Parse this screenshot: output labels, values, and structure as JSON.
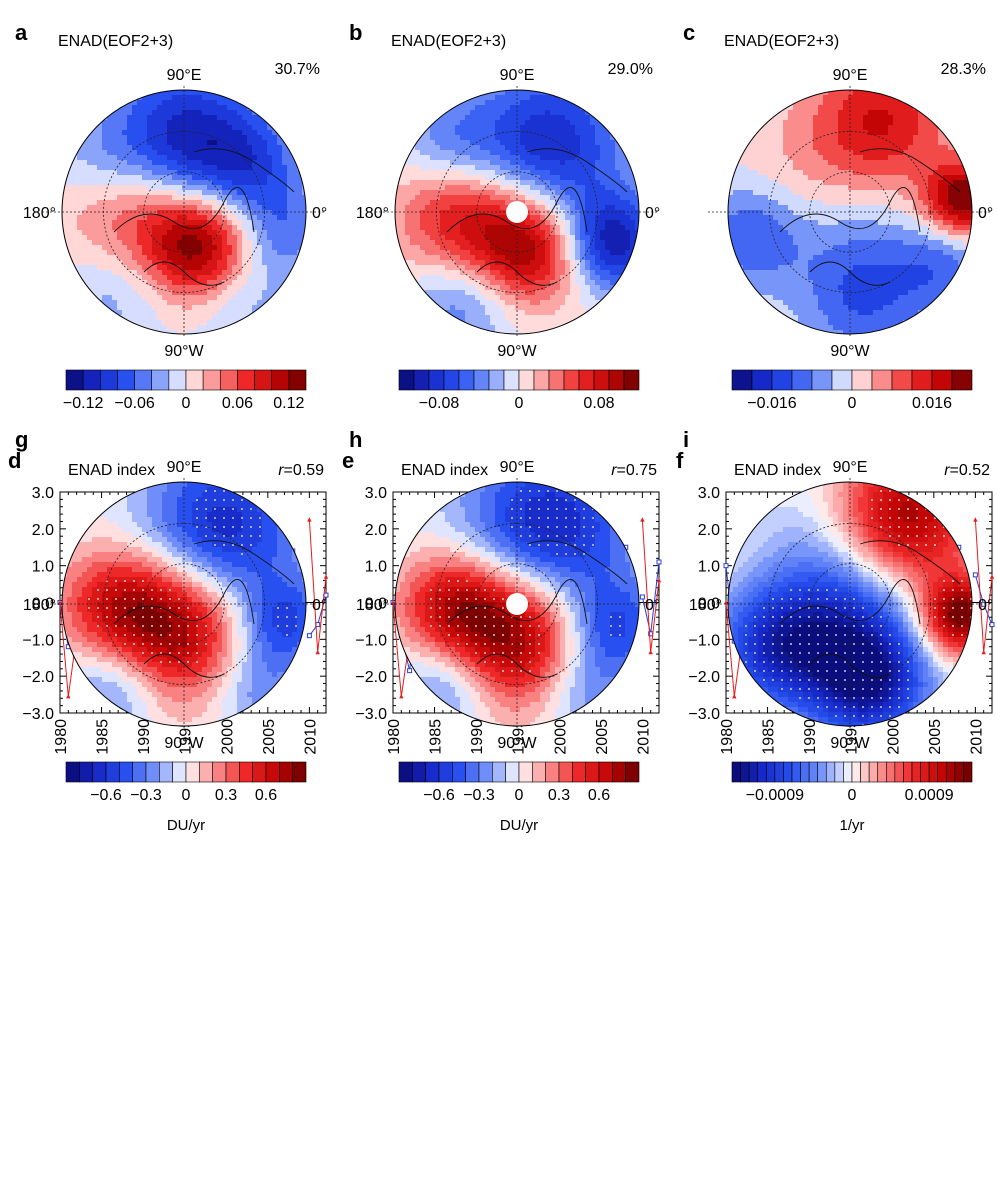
{
  "chart_data": [
    {
      "type": "polar_map",
      "panel": "a",
      "title": "ENAD(EOF2+3)",
      "variance": "30.7%",
      "lon_labels": {
        "top": "90°E",
        "bottom": "90°W",
        "left": "180°",
        "right": "0°"
      },
      "pattern": [
        {
          "x": 0.0,
          "y": -0.58,
          "v": -0.12,
          "r": 0.42
        },
        {
          "x": 0.55,
          "y": -0.38,
          "v": -0.06,
          "r": 0.3
        },
        {
          "x": -0.38,
          "y": 0.02,
          "v": 0.07,
          "r": 0.42
        },
        {
          "x": 0.12,
          "y": 0.28,
          "v": 0.12,
          "r": 0.3
        },
        {
          "x": 0.82,
          "y": 0.15,
          "v": -0.05,
          "r": 0.26
        },
        {
          "x": -0.7,
          "y": -0.45,
          "v": -0.03,
          "r": 0.3
        },
        {
          "x": -0.55,
          "y": 0.62,
          "v": -0.04,
          "r": 0.32
        },
        {
          "x": 0.5,
          "y": 0.72,
          "v": -0.03,
          "r": 0.3
        }
      ],
      "vmax": 0.14,
      "hole": false,
      "stipple": false,
      "colorbar": {
        "ticks": [
          {
            "value": -0.12,
            "label": "−0.12"
          },
          {
            "value": -0.06,
            "label": "−0.06"
          },
          {
            "value": 0,
            "label": "0"
          },
          {
            "value": 0.06,
            "label": "0.06"
          },
          {
            "value": 0.12,
            "label": "0.12"
          }
        ],
        "min": -0.14,
        "max": 0.14,
        "nbins": 14,
        "unit": ""
      }
    },
    {
      "type": "polar_map",
      "panel": "b",
      "title": "ENAD(EOF2+3)",
      "variance": "29.0%",
      "lon_labels": {
        "top": "90°E",
        "bottom": "90°W",
        "left": "180°",
        "right": "0°"
      },
      "pattern": [
        {
          "x": 0.25,
          "y": -0.55,
          "v": -0.09,
          "r": 0.45
        },
        {
          "x": 0.78,
          "y": 0.25,
          "v": -0.1,
          "r": 0.28
        },
        {
          "x": -0.45,
          "y": 0.05,
          "v": 0.08,
          "r": 0.38
        },
        {
          "x": 0.1,
          "y": 0.3,
          "v": 0.1,
          "r": 0.32
        },
        {
          "x": -0.55,
          "y": -0.55,
          "v": -0.04,
          "r": 0.3
        },
        {
          "x": -0.45,
          "y": 0.7,
          "v": -0.05,
          "r": 0.32
        }
      ],
      "vmax": 0.12,
      "hole": true,
      "stipple": false,
      "colorbar": {
        "ticks": [
          {
            "value": -0.08,
            "label": "−0.08"
          },
          {
            "value": 0,
            "label": "0"
          },
          {
            "value": 0.08,
            "label": "0.08"
          }
        ],
        "min": -0.12,
        "max": 0.12,
        "nbins": 16,
        "unit": ""
      }
    },
    {
      "type": "polar_map",
      "panel": "c",
      "title": "ENAD(EOF2+3)",
      "variance": "28.3%",
      "lon_labels": {
        "top": "90°E",
        "bottom": "90°W",
        "left": "",
        "right": "0°"
      },
      "pattern": [
        {
          "x": 0.25,
          "y": -0.75,
          "v": 0.016,
          "r": 0.38
        },
        {
          "x": 0.92,
          "y": -0.1,
          "v": 0.024,
          "r": 0.22
        },
        {
          "x": -0.35,
          "y": -0.35,
          "v": 0.004,
          "r": 0.4
        },
        {
          "x": -0.8,
          "y": 0.2,
          "v": -0.012,
          "r": 0.3
        },
        {
          "x": 0.1,
          "y": 0.7,
          "v": -0.012,
          "r": 0.35
        },
        {
          "x": 0.75,
          "y": 0.45,
          "v": -0.01,
          "r": 0.28
        },
        {
          "x": 0.0,
          "y": 0.15,
          "v": -0.004,
          "r": 0.35
        }
      ],
      "vmax": 0.024,
      "hole": false,
      "stipple": false,
      "colorbar": {
        "ticks": [
          {
            "value": -0.016,
            "label": "−0.016"
          },
          {
            "value": 0,
            "label": "0"
          },
          {
            "value": 0.016,
            "label": "0.016"
          }
        ],
        "min": -0.024,
        "max": 0.024,
        "nbins": 12,
        "unit": ""
      }
    },
    {
      "type": "line",
      "panel": "d",
      "title": "ENAD index",
      "r_label": "r",
      "r_value": "=0.59",
      "x": [
        1980,
        1981,
        1982,
        1983,
        1984,
        1985,
        1986,
        1987,
        1988,
        1989,
        1990,
        1991,
        1992,
        1993,
        1994,
        1995,
        1996,
        1997,
        1998,
        1999,
        2000,
        2001,
        2002,
        2003,
        2004,
        2005,
        2006,
        2007,
        2008,
        2009,
        2010,
        2011,
        2012
      ],
      "xticks": [
        1980,
        1985,
        1990,
        1995,
        2000,
        2005,
        2010
      ],
      "xlim": [
        1980,
        2012
      ],
      "ylim": [
        -3,
        3
      ],
      "yticks": [
        "3.0",
        "2.0",
        "1.0",
        "0.0",
        "−1.0",
        "−2.0",
        "−3.0"
      ],
      "ytick_values": [
        3,
        2,
        1,
        0,
        -1,
        -2,
        -3
      ],
      "series": [
        {
          "color": "#2b3fd4",
          "marker": "square",
          "values": [
            0.0,
            -1.2,
            -1.35,
            -0.4,
            1.65,
            -0.6,
            -1.1,
            null,
            null,
            -0.25,
            2.5,
            0.0,
            0.5,
            -0.1,
            -1.5,
            1.25,
            -0.6,
            -0.6,
            0.9,
            -0.55,
            1.0,
            1.2,
            1.7,
            0.5,
            0.2,
            -1.0,
            null,
            0.5,
            1.4,
            null,
            -0.9,
            -0.6,
            0.2
          ]
        },
        {
          "color": "#e81c1c",
          "marker": "triangle",
          "values": [
            0.0,
            -2.55,
            -0.9,
            0.0,
            0.75,
            0.4,
            -0.55,
            null,
            -0.6,
            -1.8,
            0.5,
            -0.2,
            0.4,
            0.0,
            -1.1,
            0.7,
            0.2,
            -0.95,
            0.6,
            0.1,
            0.3,
            1.6,
            0.8,
            0.6,
            0.5,
            null,
            null,
            0.4,
            1.35,
            null,
            2.25,
            -1.35,
            0.7
          ]
        }
      ]
    },
    {
      "type": "line",
      "panel": "e",
      "title": "ENAD index",
      "r_label": "r",
      "r_value": "=0.75",
      "x": [
        1980,
        1981,
        1982,
        1983,
        1984,
        1985,
        1986,
        1987,
        1988,
        1989,
        1990,
        1991,
        1992,
        1993,
        1994,
        1995,
        1996,
        1997,
        1998,
        1999,
        2000,
        2001,
        2002,
        2003,
        2004,
        2005,
        2006,
        2007,
        2008,
        2009,
        2010,
        2011,
        2012
      ],
      "xticks": [
        1980,
        1985,
        1990,
        1995,
        2000,
        2005,
        2010
      ],
      "xlim": [
        1980,
        2012
      ],
      "ylim": [
        -3,
        3
      ],
      "yticks": [
        "3.0",
        "2.0",
        "1.0",
        "0.0",
        "−1.0",
        "−2.0",
        "−3.0"
      ],
      "ytick_values": [
        3,
        2,
        1,
        0,
        -1,
        -2,
        -3
      ],
      "series": [
        {
          "color": "#2b3fd4",
          "marker": "square",
          "values": [
            0.0,
            -0.9,
            -1.85,
            0.6,
            1.35,
            0.0,
            -0.9,
            null,
            -0.55,
            -1.8,
            0.3,
            0.3,
            0.6,
            0.0,
            -2.05,
            0.75,
            0.55,
            1.0,
            -0.3,
            -0.6,
            1.4,
            1.45,
            1.25,
            0.1,
            1.05,
            -0.25,
            null,
            0.55,
            1.5,
            null,
            0.15,
            -0.85,
            1.1
          ]
        },
        {
          "color": "#e81c1c",
          "marker": "triangle",
          "values": [
            0.0,
            -2.55,
            -1.0,
            0.0,
            0.75,
            0.4,
            -0.5,
            null,
            -0.55,
            -1.85,
            0.55,
            -0.3,
            0.45,
            0.0,
            -1.1,
            0.65,
            0.2,
            -0.95,
            0.55,
            0.1,
            0.25,
            1.6,
            0.85,
            0.65,
            0.5,
            null,
            null,
            0.45,
            1.35,
            null,
            2.25,
            -1.35,
            0.6
          ]
        }
      ]
    },
    {
      "type": "line",
      "panel": "f",
      "title": "ENAD index",
      "r_label": "r",
      "r_value": "=0.52",
      "x": [
        1980,
        1981,
        1982,
        1983,
        1984,
        1985,
        1986,
        1987,
        1988,
        1989,
        1990,
        1991,
        1992,
        1993,
        1994,
        1995,
        1996,
        1997,
        1998,
        1999,
        2000,
        2001,
        2002,
        2003,
        2004,
        2005,
        2006,
        2007,
        2008,
        2009,
        2010,
        2011,
        2012
      ],
      "xticks": [
        1980,
        1985,
        1990,
        1995,
        2000,
        2005,
        2010
      ],
      "xlim": [
        1980,
        2012
      ],
      "ylim": [
        -3,
        3
      ],
      "yticks": [
        "3.0",
        "2.0",
        "1.0",
        "0.0",
        "−1.0",
        "−2.0",
        "−3.0"
      ],
      "ytick_values": [
        3,
        2,
        1,
        0,
        -1,
        -2,
        -3
      ],
      "series": [
        {
          "color": "#2b3fd4",
          "marker": "square",
          "values": [
            1.0,
            -1.05,
            0.3,
            -0.6,
            0.05,
            -0.5,
            -0.5,
            null,
            -0.35,
            -1.3,
            2.35,
            -0.35,
            0.2,
            -0.2,
            -0.6,
            1.0,
            -1.25,
            -0.55,
            1.05,
            -0.9,
            0.4,
            0.5,
            1.0,
            0.0,
            -0.35,
            -2.05,
            null,
            1.25,
            1.5,
            null,
            0.75,
            -0.05,
            -0.6
          ]
        },
        {
          "color": "#e81c1c",
          "marker": "triangle",
          "values": [
            0.0,
            -2.55,
            -0.9,
            0.0,
            0.75,
            0.4,
            -0.55,
            null,
            -0.6,
            -1.8,
            0.5,
            -0.2,
            0.4,
            0.0,
            -1.1,
            0.7,
            0.2,
            -0.95,
            0.6,
            0.1,
            0.3,
            1.6,
            0.8,
            0.6,
            0.5,
            null,
            null,
            0.4,
            1.35,
            null,
            2.25,
            -1.35,
            0.7
          ]
        }
      ]
    },
    {
      "type": "polar_map",
      "panel": "g",
      "title": "",
      "variance": "",
      "lon_labels": {
        "top": "90°E",
        "bottom": "90°W",
        "left": "180°",
        "right": "0°"
      },
      "pattern": [
        {
          "x": 0.3,
          "y": -0.6,
          "v": -0.7,
          "r": 0.45
        },
        {
          "x": 0.82,
          "y": 0.15,
          "v": -0.5,
          "r": 0.26
        },
        {
          "x": -0.1,
          "y": 0.2,
          "v": 0.85,
          "r": 0.42
        },
        {
          "x": -0.6,
          "y": 0.0,
          "v": 0.4,
          "r": 0.32
        },
        {
          "x": -0.55,
          "y": 0.65,
          "v": -0.4,
          "r": 0.3
        },
        {
          "x": 0.6,
          "y": 0.7,
          "v": -0.3,
          "r": 0.28
        }
      ],
      "vmax": 0.9,
      "hole": false,
      "stipple": true,
      "colorbar": {
        "ticks": [
          {
            "value": -0.6,
            "label": "−0.6"
          },
          {
            "value": -0.3,
            "label": "−0.3"
          },
          {
            "value": 0,
            "label": "0"
          },
          {
            "value": 0.3,
            "label": "0.3"
          },
          {
            "value": 0.6,
            "label": "0.6"
          }
        ],
        "min": -0.9,
        "max": 0.9,
        "nbins": 18,
        "unit": "DU/yr"
      }
    },
    {
      "type": "polar_map",
      "panel": "h",
      "title": "",
      "variance": "",
      "lon_labels": {
        "top": "90°E",
        "bottom": "90°W",
        "left": "180°",
        "right": "0°"
      },
      "pattern": [
        {
          "x": 0.25,
          "y": -0.6,
          "v": -0.75,
          "r": 0.48
        },
        {
          "x": 0.8,
          "y": 0.2,
          "v": -0.5,
          "r": 0.28
        },
        {
          "x": -0.05,
          "y": 0.25,
          "v": 0.9,
          "r": 0.42
        },
        {
          "x": -0.55,
          "y": 0.0,
          "v": 0.5,
          "r": 0.3
        },
        {
          "x": -0.55,
          "y": 0.65,
          "v": -0.4,
          "r": 0.3
        },
        {
          "x": 0.55,
          "y": 0.72,
          "v": -0.3,
          "r": 0.28
        }
      ],
      "vmax": 0.9,
      "hole": true,
      "stipple": true,
      "colorbar": {
        "ticks": [
          {
            "value": -0.6,
            "label": "−0.6"
          },
          {
            "value": -0.3,
            "label": "−0.3"
          },
          {
            "value": 0,
            "label": "0"
          },
          {
            "value": 0.3,
            "label": "0.3"
          },
          {
            "value": 0.6,
            "label": "0.6"
          }
        ],
        "min": -0.9,
        "max": 0.9,
        "nbins": 18,
        "unit": "DU/yr"
      }
    },
    {
      "type": "polar_map",
      "panel": "i",
      "title": "",
      "variance": "",
      "lon_labels": {
        "top": "90°E",
        "bottom": "90°W",
        "left": "180°",
        "right": "0°"
      },
      "pattern": [
        {
          "x": 0.45,
          "y": -0.7,
          "v": 0.0012,
          "r": 0.4
        },
        {
          "x": 0.9,
          "y": 0.1,
          "v": 0.0014,
          "r": 0.22
        },
        {
          "x": -0.3,
          "y": -0.55,
          "v": -0.0002,
          "r": 0.35
        },
        {
          "x": -0.6,
          "y": 0.35,
          "v": -0.001,
          "r": 0.36
        },
        {
          "x": 0.15,
          "y": 0.65,
          "v": -0.0012,
          "r": 0.34
        },
        {
          "x": 0.0,
          "y": 0.05,
          "v": -0.0007,
          "r": 0.4
        }
      ],
      "vmax": 0.0014,
      "hole": false,
      "stipple": true,
      "colorbar": {
        "ticks": [
          {
            "value": -0.0009,
            "label": "−0.0009"
          },
          {
            "value": 0,
            "label": "0"
          },
          {
            "value": 0.0009,
            "label": "0.0009"
          }
        ],
        "min": -0.0014,
        "max": 0.0014,
        "nbins": 28,
        "unit": "1/yr"
      }
    }
  ]
}
